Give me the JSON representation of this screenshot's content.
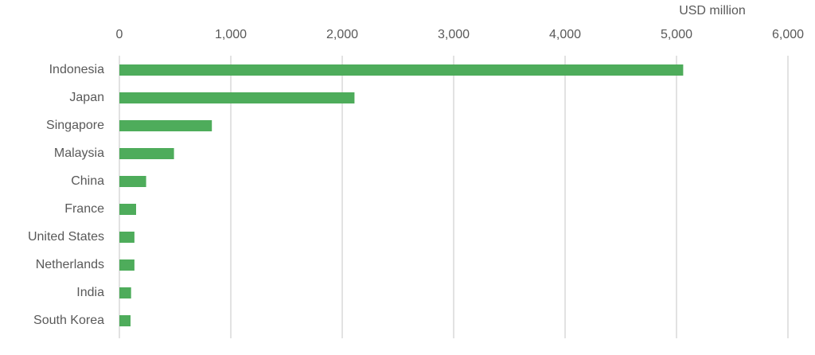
{
  "chart_data": {
    "type": "bar",
    "orientation": "horizontal",
    "xlabel": "USD million",
    "categories": [
      "Indonesia",
      "Japan",
      "Singapore",
      "Malaysia",
      "China",
      "France",
      "United States",
      "Netherlands",
      "India",
      "South Korea"
    ],
    "values": [
      5060,
      2110,
      830,
      490,
      240,
      150,
      135,
      135,
      105,
      100
    ],
    "color": "#4eac5b",
    "xlim": [
      0,
      6000
    ],
    "xticks": [
      0,
      {
        "value": 1000,
        "label": "1,000"
      },
      {
        "value": 2000,
        "label": "2,000"
      },
      {
        "value": 3000,
        "label": "3,000"
      },
      {
        "value": 4000,
        "label": "4,000"
      },
      {
        "value": 5000,
        "label": "5,000"
      },
      {
        "value": 6000,
        "label": "6,000"
      }
    ],
    "grid": true
  }
}
